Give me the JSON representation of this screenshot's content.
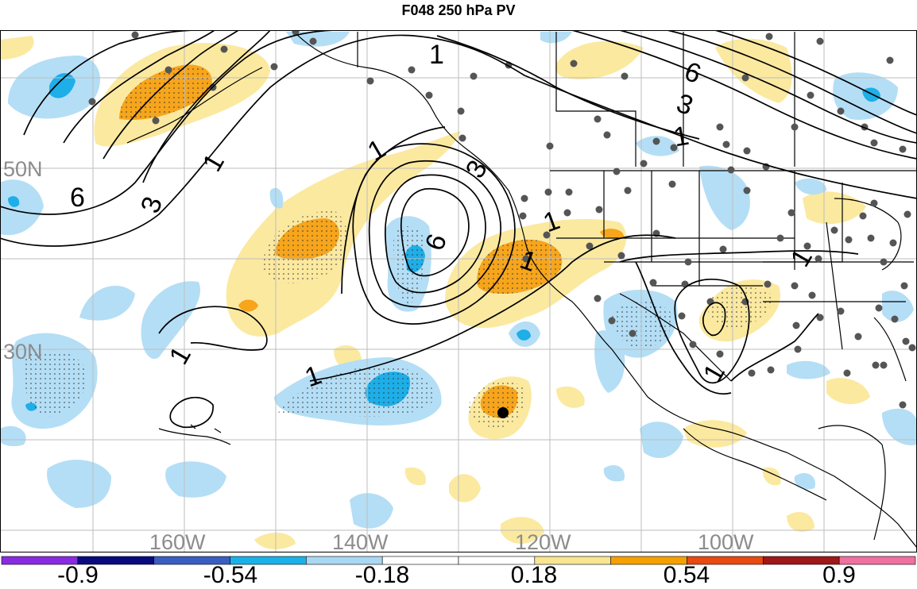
{
  "title": "F048 250 hPa PV",
  "map": {
    "lat_labels": [
      "50N",
      "30N"
    ],
    "lon_labels": [
      "160W",
      "140W",
      "120W",
      "100W"
    ],
    "contour_labels": [
      "6",
      "3",
      "1",
      "1",
      "1",
      "6",
      "3",
      "1",
      "1",
      "1",
      "1",
      "1",
      "6",
      "3",
      "1",
      "1"
    ],
    "grid": true,
    "marker": "black-dot",
    "stipple": true
  },
  "colorbar": {
    "tick_labels": [
      "-0.9",
      "-0.54",
      "-0.18",
      "0.18",
      "0.54",
      "0.9"
    ],
    "colors": [
      "#8a2be2",
      "#0a0a7f",
      "#3a5ec0",
      "#19b2e8",
      "#a8d8f2",
      "#ffffff",
      "#ffffff",
      "#f8e690",
      "#f6a000",
      "#e84a10",
      "#a01818",
      "#f070a0"
    ]
  },
  "colors": {
    "positive_light": "#fbe9a0",
    "positive_mid": "#f6a51c",
    "negative_light": "#b4def5",
    "negative_mid": "#1eaee8",
    "grid": "#bdbdbd",
    "coast": "#000000",
    "station": "#555555"
  }
}
